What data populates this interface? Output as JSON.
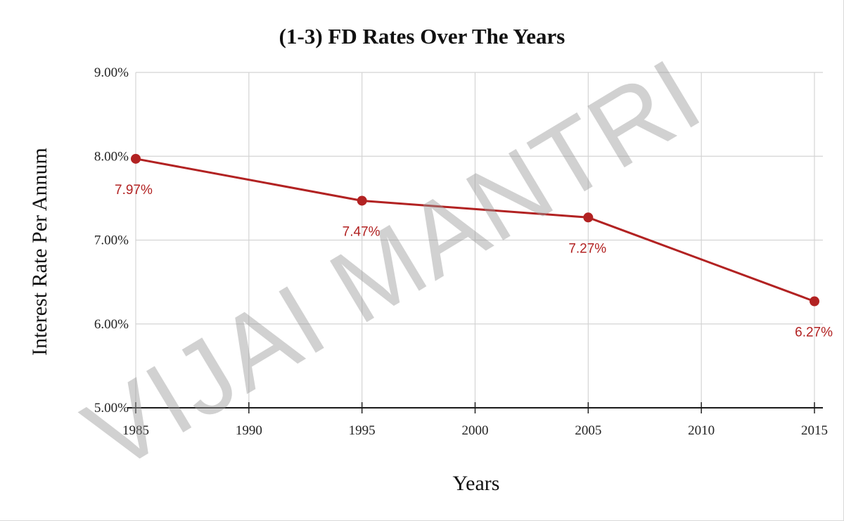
{
  "chart_data": {
    "type": "line",
    "title": "(1-3) FD Rates Over The Years",
    "xlabel": "Years",
    "ylabel": "Interest Rate Per Annum",
    "x": [
      1985,
      1995,
      2005,
      2015
    ],
    "series": [
      {
        "values": [
          7.97,
          7.47,
          7.27,
          6.27
        ],
        "labels": [
          "7.97%",
          "7.47%",
          "7.27%",
          "6.27%"
        ]
      }
    ],
    "xlim": [
      1985,
      2015
    ],
    "ylim": [
      5.0,
      9.0
    ],
    "x_ticks": [
      1985,
      1990,
      1995,
      2000,
      2005,
      2010,
      2015
    ],
    "y_ticks": [
      5,
      6,
      7,
      8,
      9
    ],
    "y_tick_labels": [
      "5.00%",
      "6.00%",
      "7.00%",
      "8.00%",
      "9.00%"
    ],
    "grid": true,
    "legend": "none",
    "series_color": "#b22222"
  },
  "watermark": "VIJAI MANTRI"
}
